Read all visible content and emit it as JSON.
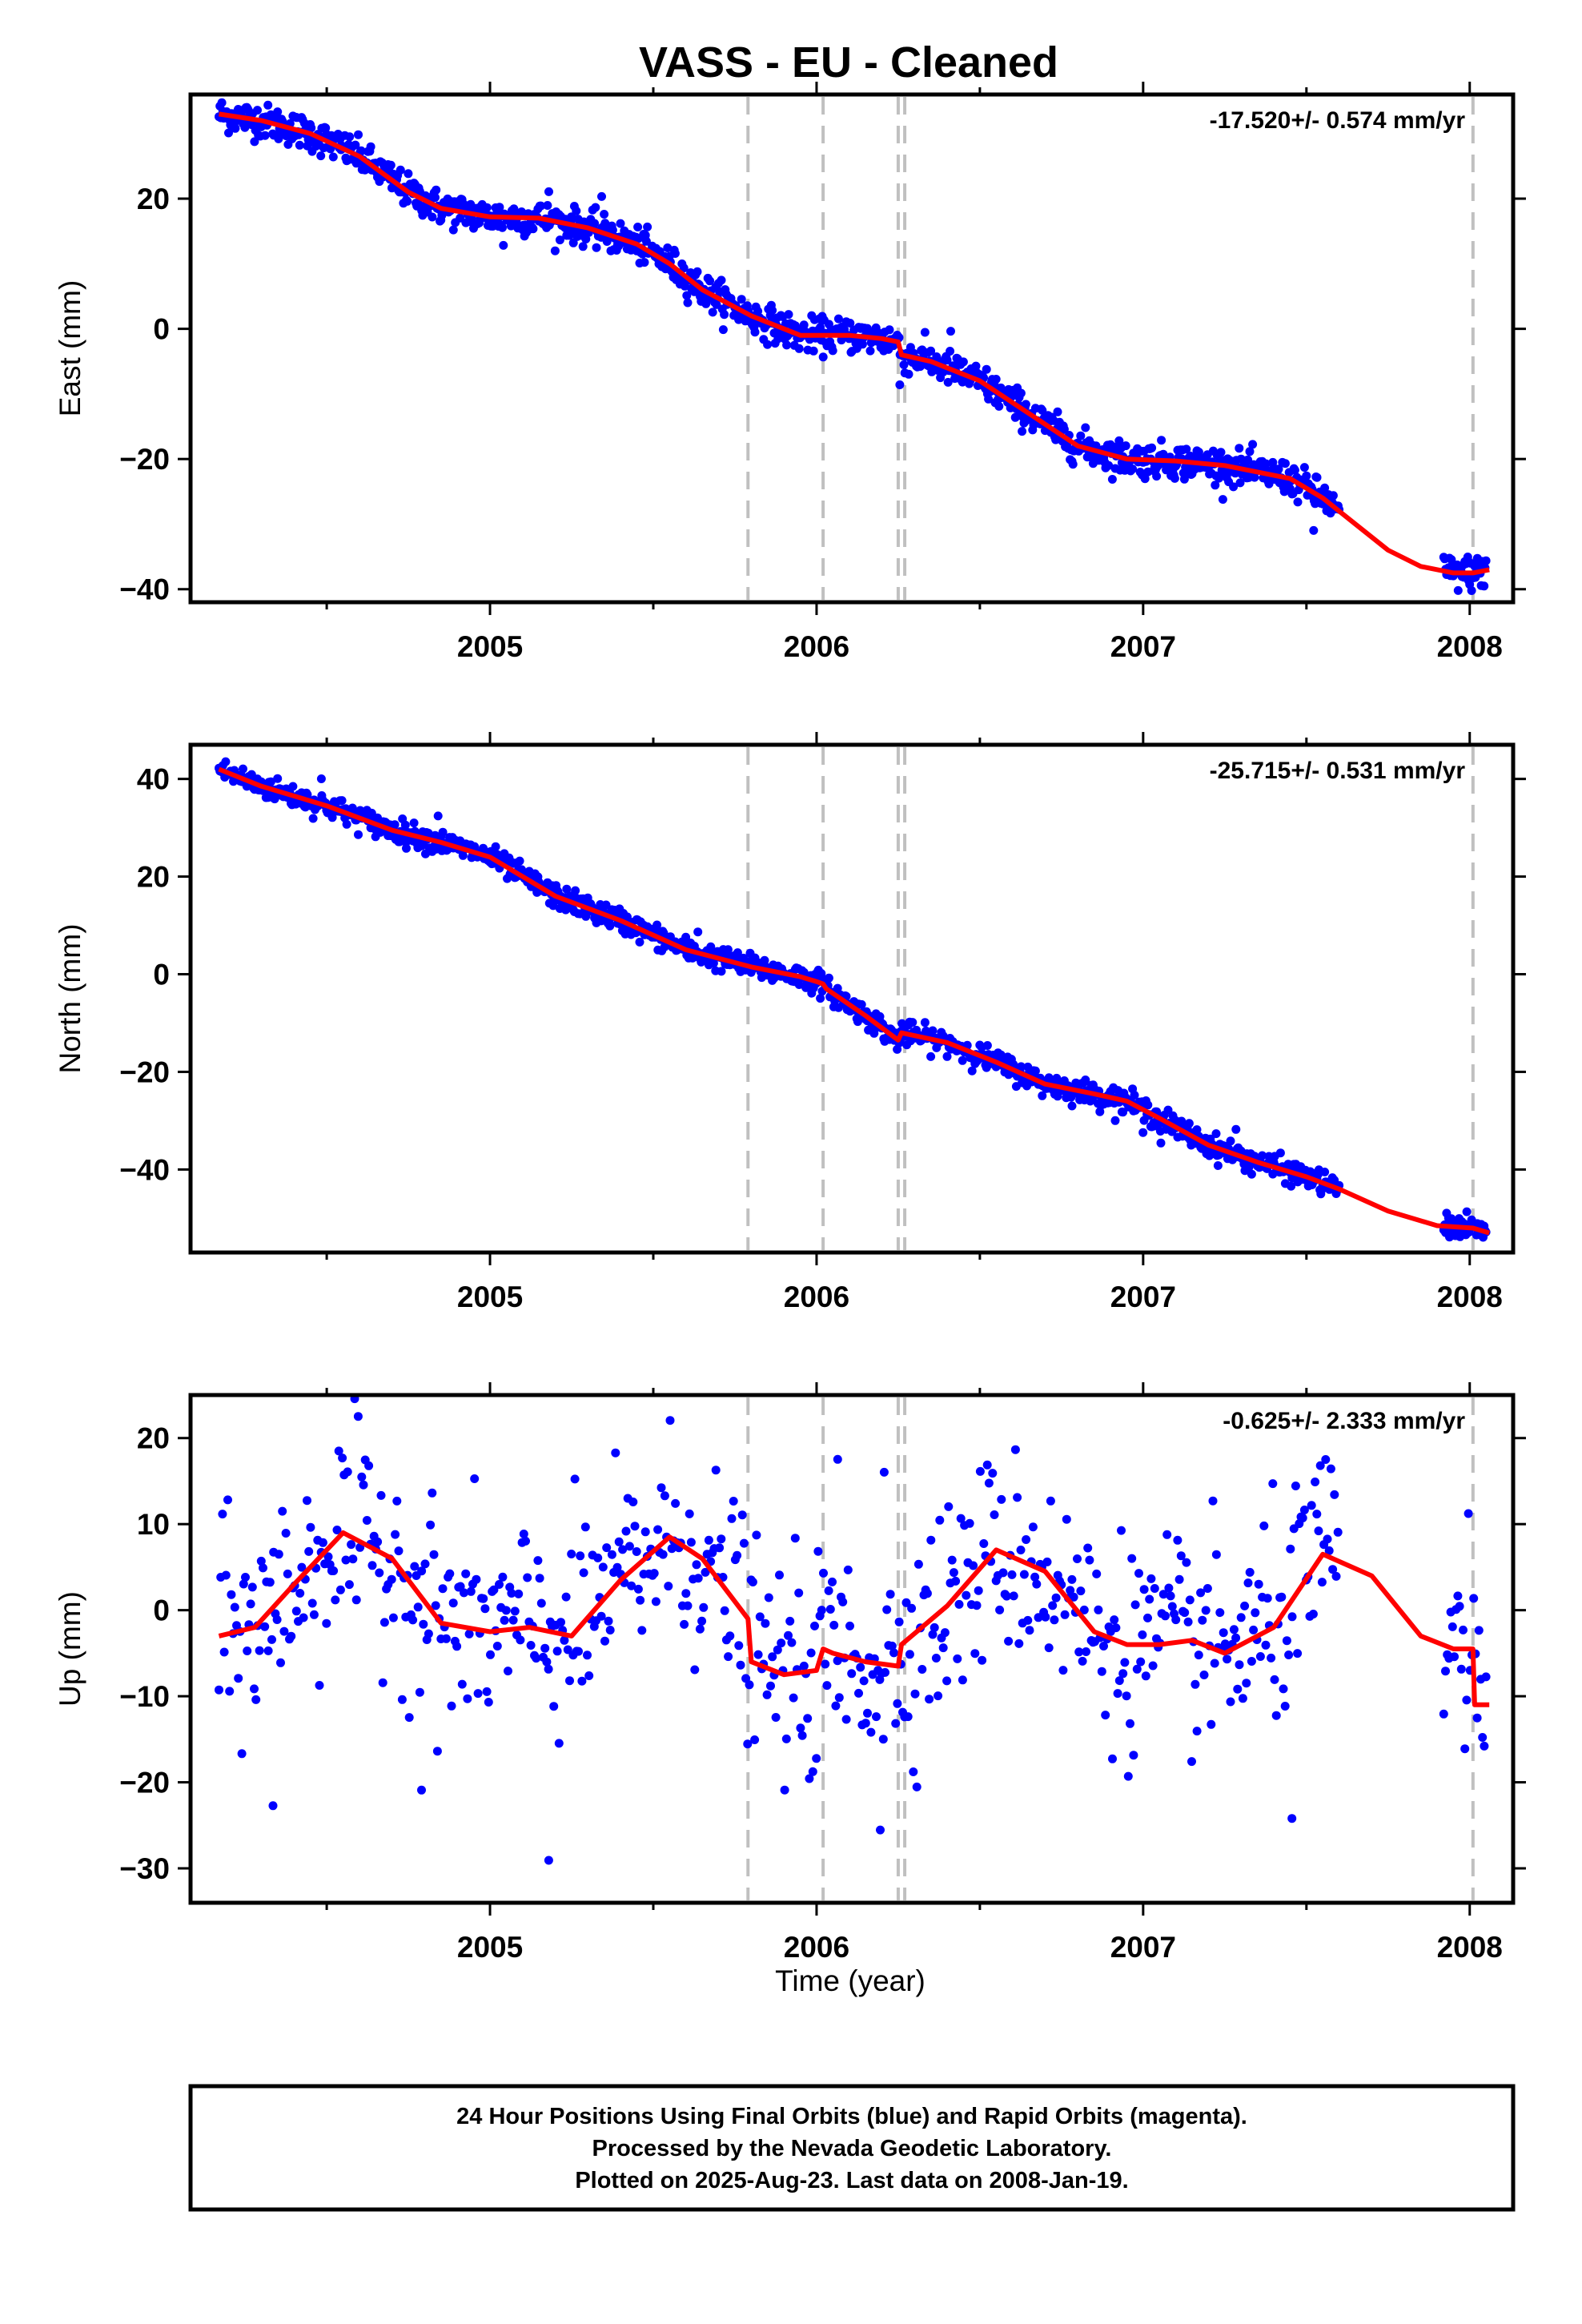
{
  "title": "VASS  - EU - Cleaned",
  "xlabel": "Time (year)",
  "footer": [
    "24 Hour Positions Using Final Orbits (blue) and Rapid Orbits (magenta).",
    "Processed by the Nevada Geodetic Laboratory.",
    "Plotted on 2025-Aug-23. Last data on 2008-Jan-19."
  ],
  "colors": {
    "points": "#0000ff",
    "model": "#ff0000",
    "breaks": "#c0c0c0",
    "frame": "#000000"
  },
  "chart_data": [
    {
      "type": "scatter",
      "ylabel": "East (mm)",
      "rate_label": "-17.520+/- 0.574 mm/yr",
      "xlim": [
        2004.083,
        2008.133
      ],
      "ylim": [
        -42,
        36
      ],
      "x_ticks": [
        2005,
        2006,
        2007,
        2008
      ],
      "x_tick_labels": [
        "2005",
        "2006",
        "2007",
        "2008"
      ],
      "y_ticks": [
        -40,
        -20,
        0,
        20
      ],
      "y_tick_labels": [
        "−40",
        "−20",
        "0",
        "20"
      ],
      "breaks": [
        2005.79,
        2006.02,
        2006.25,
        2006.27,
        2008.01
      ],
      "series": [
        {
          "role": "model",
          "color": "#ff0000",
          "x": [
            2004.17,
            2004.3,
            2004.45,
            2004.6,
            2004.75,
            2004.85,
            2005.0,
            2005.15,
            2005.3,
            2005.45,
            2005.55,
            2005.65,
            2005.8,
            2005.95,
            2006.02,
            2006.1,
            2006.2,
            2006.25,
            2006.26,
            2006.35,
            2006.5,
            2006.65,
            2006.8,
            2006.95,
            2007.1,
            2007.25,
            2007.35,
            2007.45,
            2007.55,
            2007.65,
            2007.75,
            2007.85,
            2007.95,
            2008.01,
            2008.06
          ],
          "y": [
            33.0,
            32.0,
            30.0,
            26.5,
            21.0,
            18.5,
            17.2,
            17.0,
            15.5,
            13.0,
            10.0,
            6.0,
            2.0,
            -1.0,
            -1.0,
            -1.0,
            -1.5,
            -2.0,
            -4.0,
            -5.0,
            -8.0,
            -13.0,
            -18.0,
            -20.0,
            -20.3,
            -21.0,
            -22.0,
            -23.0,
            -26.0,
            -30.0,
            -34.0,
            -36.5,
            -37.5,
            -37.5,
            -37.0
          ]
        },
        {
          "role": "observations",
          "color": "#0000ff",
          "x_range": [
            2004.17,
            2008.05
          ],
          "gap": [
            2007.6,
            2007.92
          ],
          "noise_mm": 1.3,
          "outliers": 6,
          "n": 1320
        }
      ]
    },
    {
      "type": "scatter",
      "ylabel": "North (mm)",
      "rate_label": "-25.715+/- 0.531 mm/yr",
      "xlim": [
        2004.083,
        2008.133
      ],
      "ylim": [
        -57,
        47
      ],
      "x_ticks": [
        2005,
        2006,
        2007,
        2008
      ],
      "x_tick_labels": [
        "2005",
        "2006",
        "2007",
        "2008"
      ],
      "y_ticks": [
        -40,
        -20,
        0,
        20,
        40
      ],
      "y_tick_labels": [
        "−40",
        "−20",
        "0",
        "20",
        "40"
      ],
      "breaks": [
        2005.79,
        2006.02,
        2006.25,
        2006.27,
        2008.01
      ],
      "series": [
        {
          "role": "model",
          "color": "#ff0000",
          "x": [
            2004.17,
            2004.3,
            2004.5,
            2004.7,
            2004.85,
            2005.0,
            2005.1,
            2005.2,
            2005.4,
            2005.6,
            2005.8,
            2005.95,
            2006.0,
            2006.02,
            2006.03,
            2006.15,
            2006.25,
            2006.26,
            2006.4,
            2006.55,
            2006.7,
            2006.85,
            2006.95,
            2007.05,
            2007.2,
            2007.35,
            2007.5,
            2007.6,
            2007.75,
            2007.9,
            2008.01,
            2008.06
          ],
          "y": [
            42.0,
            38.5,
            34.5,
            29.5,
            27.0,
            24.0,
            20.0,
            16.0,
            11.0,
            5.0,
            1.5,
            -0.5,
            -1.5,
            -2.0,
            -3.0,
            -8.5,
            -13.5,
            -12.0,
            -14.0,
            -18.0,
            -22.5,
            -24.5,
            -26.0,
            -29.5,
            -35.0,
            -38.5,
            -41.5,
            -44.0,
            -48.5,
            -51.5,
            -52.0,
            -53.0
          ]
        },
        {
          "role": "observations",
          "color": "#0000ff",
          "x_range": [
            2004.17,
            2008.05
          ],
          "gap": [
            2007.6,
            2007.92
          ],
          "noise_mm": 1.2,
          "outliers": 6,
          "n": 1320
        }
      ]
    },
    {
      "type": "scatter",
      "ylabel": "Up (mm)",
      "rate_label": "-0.625+/- 2.333 mm/yr",
      "xlim": [
        2004.083,
        2008.133
      ],
      "ylim": [
        -34,
        25
      ],
      "x_ticks": [
        2005,
        2006,
        2007,
        2008
      ],
      "x_tick_labels": [
        "2005",
        "2006",
        "2007",
        "2008"
      ],
      "y_ticks": [
        -30,
        -20,
        -10,
        0,
        10,
        20
      ],
      "y_tick_labels": [
        "−30",
        "−20",
        "−10",
        "0",
        "10",
        "20"
      ],
      "breaks": [
        2005.79,
        2006.02,
        2006.25,
        2006.27,
        2008.01
      ],
      "series": [
        {
          "role": "model",
          "color": "#ff0000",
          "x": [
            2004.17,
            2004.28,
            2004.4,
            2004.55,
            2004.7,
            2004.85,
            2005.0,
            2005.12,
            2005.25,
            2005.4,
            2005.55,
            2005.65,
            2005.75,
            2005.79,
            2005.8,
            2005.9,
            2006.0,
            2006.02,
            2006.05,
            2006.15,
            2006.25,
            2006.26,
            2006.4,
            2006.55,
            2006.7,
            2006.85,
            2006.95,
            2007.05,
            2007.15,
            2007.25,
            2007.4,
            2007.55,
            2007.7,
            2007.85,
            2007.95,
            2008.01,
            2008.015,
            2008.06
          ],
          "y": [
            -3.0,
            -2.0,
            3.0,
            9.0,
            6.0,
            -1.5,
            -2.5,
            -2.0,
            -3.0,
            3.5,
            8.5,
            6.0,
            1.0,
            -1.0,
            -6.0,
            -7.5,
            -7.0,
            -4.5,
            -5.0,
            -6.0,
            -6.5,
            -4.0,
            0.5,
            7.0,
            4.5,
            -2.5,
            -4.0,
            -4.0,
            -3.5,
            -5.0,
            -2.0,
            6.5,
            4.0,
            -3.0,
            -4.5,
            -4.5,
            -11.0,
            -11.0
          ]
        },
        {
          "role": "observations",
          "color": "#0000ff",
          "x_range": [
            2004.17,
            2008.05
          ],
          "gap": [
            2007.6,
            2007.92
          ],
          "noise_mm": 6.0,
          "outliers": 8,
          "n": 720
        }
      ]
    }
  ]
}
